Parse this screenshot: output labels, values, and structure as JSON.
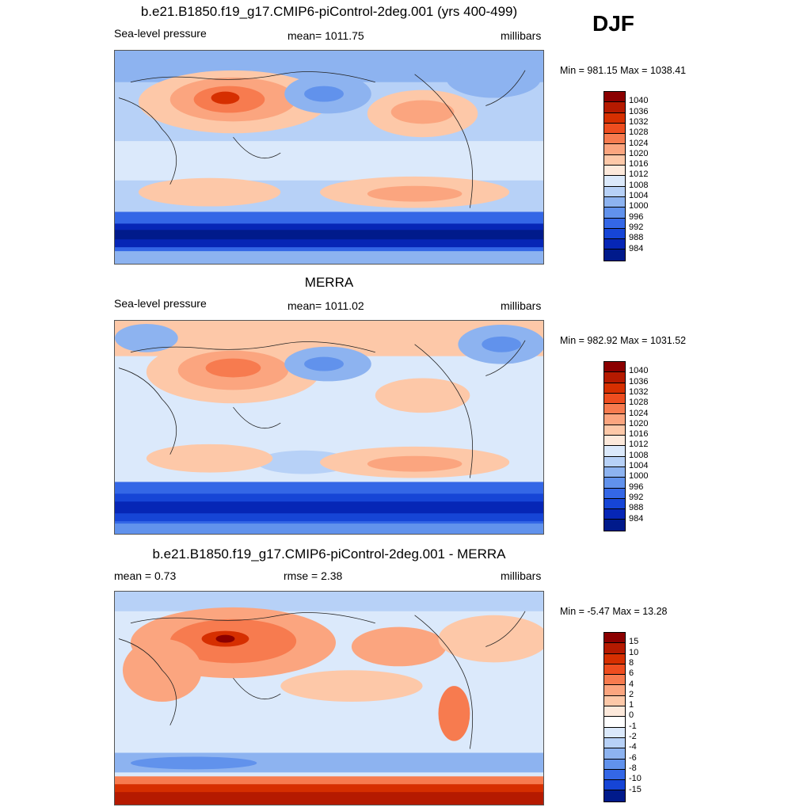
{
  "season": "DJF",
  "panels": [
    {
      "title": "b.e21.B1850.f19_g17.CMIP6-piControl-2deg.001 (yrs 400-499)",
      "left_label": "Sea-level pressure",
      "center_label": "mean= 1011.75",
      "right_label": "millibars",
      "minmax": "Min = 981.15 Max = 1038.41",
      "levels": [
        "1040",
        "1036",
        "1032",
        "1028",
        "1024",
        "1020",
        "1016",
        "1012",
        "1008",
        "1004",
        "1000",
        "996",
        "992",
        "988",
        "984"
      ],
      "colors": [
        "#8b0000",
        "#b51a00",
        "#d62f00",
        "#ee4d1f",
        "#f77b4f",
        "#fba57f",
        "#fdc8a8",
        "#fde9db",
        "#dbe9fb",
        "#b7d1f7",
        "#8db3f0",
        "#6192ec",
        "#3467e6",
        "#1645d6",
        "#0626b6",
        "#001a8b"
      ],
      "map": "model"
    },
    {
      "title": "MERRA",
      "left_label": "Sea-level pressure",
      "center_label": "mean= 1011.02",
      "right_label": "millibars",
      "minmax": "Min = 982.92 Max = 1031.52",
      "levels": [
        "1040",
        "1036",
        "1032",
        "1028",
        "1024",
        "1020",
        "1016",
        "1012",
        "1008",
        "1004",
        "1000",
        "996",
        "992",
        "988",
        "984"
      ],
      "colors": [
        "#8b0000",
        "#b51a00",
        "#d62f00",
        "#ee4d1f",
        "#f77b4f",
        "#fba57f",
        "#fdc8a8",
        "#fde9db",
        "#dbe9fb",
        "#b7d1f7",
        "#8db3f0",
        "#6192ec",
        "#3467e6",
        "#1645d6",
        "#0626b6",
        "#001a8b"
      ],
      "map": "obs"
    },
    {
      "title": "b.e21.B1850.f19_g17.CMIP6-piControl-2deg.001 - MERRA",
      "left_label": "mean =   0.73",
      "center_label": "rmse =   2.38",
      "right_label": "millibars",
      "minmax": "Min =  -5.47 Max =  13.28",
      "levels": [
        "15",
        "10",
        "8",
        "6",
        "4",
        "2",
        "1",
        "0",
        "-1",
        "-2",
        "-4",
        "-6",
        "-8",
        "-10",
        "-15"
      ],
      "colors": [
        "#8b0000",
        "#b51a00",
        "#d62f00",
        "#ee4d1f",
        "#f77b4f",
        "#fba57f",
        "#fdc8a8",
        "#fde9db",
        "#ffffff",
        "#dbe9fb",
        "#b7d1f7",
        "#8db3f0",
        "#6192ec",
        "#3467e6",
        "#1645d6",
        "#001a8b"
      ],
      "map": "diff"
    }
  ]
}
